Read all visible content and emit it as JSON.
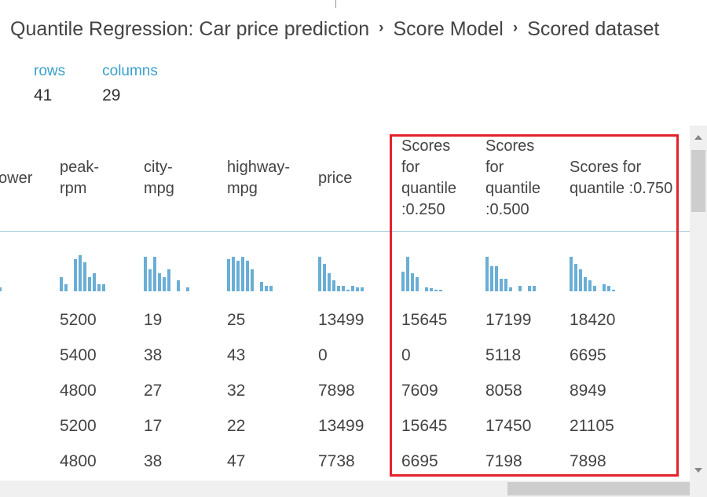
{
  "breadcrumb": {
    "items": [
      "Quantile Regression: Car price prediction",
      "Score Model",
      "Scored dataset"
    ]
  },
  "stats": {
    "rows_label": "rows",
    "rows_value": "41",
    "columns_label": "columns",
    "columns_value": "29"
  },
  "table": {
    "columns": [
      {
        "header": "ower"
      },
      {
        "header": "peak-\nrpm"
      },
      {
        "header": "city-\nmpg"
      },
      {
        "header": "highway-\nmpg"
      },
      {
        "header": "price"
      },
      {
        "header": "Scores\nfor\nquantile\n:0.250"
      },
      {
        "header": "Scores\nfor\nquantile\n:0.500"
      },
      {
        "header": "Scores for\nquantile :0.750"
      }
    ],
    "rows": [
      [
        "",
        "5200",
        "19",
        "25",
        "13499",
        "15645",
        "17199",
        "18420"
      ],
      [
        "",
        "5400",
        "38",
        "43",
        "0",
        "0",
        "5118",
        "6695"
      ],
      [
        "",
        "4800",
        "27",
        "32",
        "7898",
        "7609",
        "8058",
        "8949"
      ],
      [
        "",
        "5200",
        "17",
        "22",
        "13499",
        "15645",
        "17450",
        "21105"
      ],
      [
        "",
        "4800",
        "38",
        "47",
        "7738",
        "6695",
        "7198",
        "7898"
      ]
    ],
    "histograms": [
      [
        0.1
      ],
      [
        0.4,
        0.2,
        0,
        0.9,
        1.0,
        0.8,
        0.4,
        0.5,
        0.2,
        0.2
      ],
      [
        0.95,
        0.6,
        0.95,
        0.5,
        0.4,
        0.6,
        0,
        0.3,
        0,
        0.1
      ],
      [
        0.9,
        0.95,
        0.85,
        0.95,
        0.85,
        0.6,
        0,
        0.25,
        0.15,
        0.15
      ],
      [
        0.95,
        0.75,
        0.5,
        0.3,
        0.15,
        0.15,
        0.05,
        0.15,
        0.1,
        0.1
      ],
      [
        0.55,
        0.95,
        0.5,
        0.4,
        0,
        0.1,
        0.08,
        0.05,
        0.05
      ],
      [
        0.95,
        0.7,
        0.7,
        0.35,
        0.35,
        0.1,
        0,
        0.15,
        0,
        0.15,
        0.15
      ],
      [
        0.95,
        0.75,
        0.6,
        0.4,
        0.3,
        0.15,
        0,
        0.2,
        0.15,
        0.05
      ]
    ]
  },
  "colors": {
    "accent": "#3aa0cc",
    "histogram_bar": "#6aaed6",
    "highlight_border": "#e3232c",
    "separator": "#9fc6d8"
  }
}
